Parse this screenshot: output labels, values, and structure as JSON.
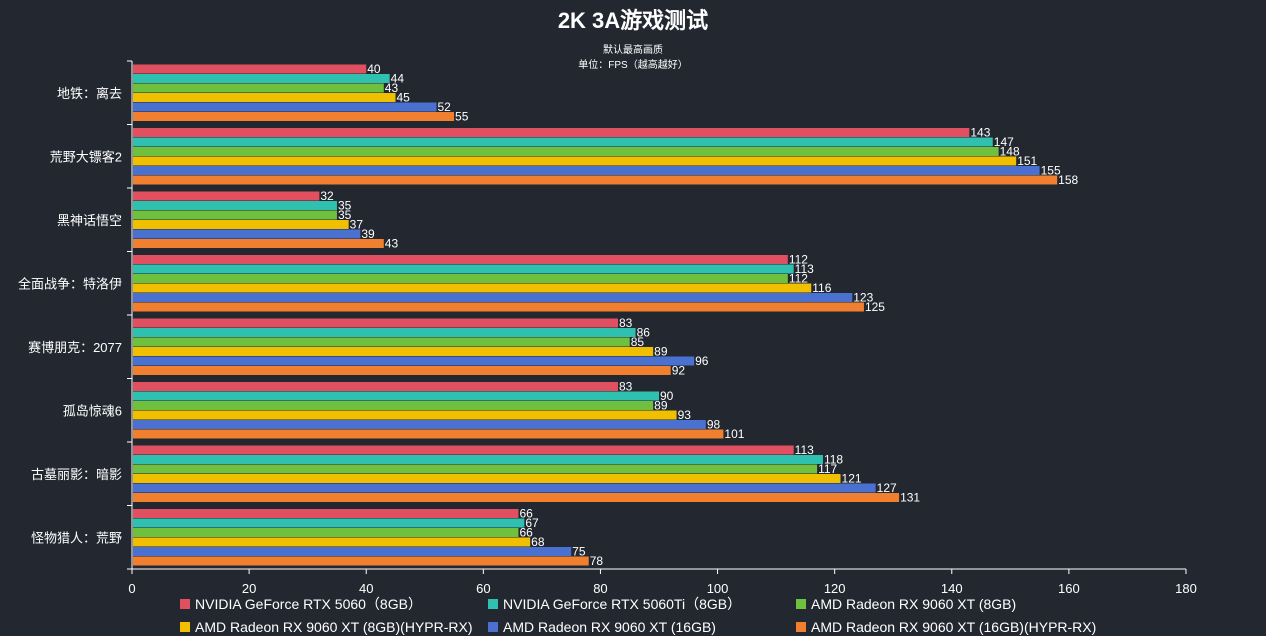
{
  "chart_data": {
    "type": "bar",
    "orientation": "horizontal",
    "title": "2K 3A游戏测试",
    "subtitle": "默认最高画质",
    "subtitle2": "单位：FPS（越高越好）",
    "categories": [
      "地铁：离去",
      "荒野大镖客2",
      "黑神话悟空",
      "全面战争：特洛伊",
      "赛博朋克：2077",
      "孤岛惊魂6",
      "古墓丽影：暗影",
      "怪物猎人：荒野"
    ],
    "series": [
      {
        "name": "NVIDIA GeForce RTX 5060（8GB）",
        "color": "#e05060",
        "values": [
          40,
          143,
          32,
          112,
          83,
          83,
          113,
          66
        ]
      },
      {
        "name": "NVIDIA GeForce RTX 5060Ti（8GB）",
        "color": "#30c0b0",
        "values": [
          44,
          147,
          35,
          113,
          86,
          90,
          118,
          67
        ]
      },
      {
        "name": "AMD Radeon RX 9060 XT (8GB)",
        "color": "#70c040",
        "values": [
          43,
          148,
          35,
          112,
          85,
          89,
          117,
          66
        ]
      },
      {
        "name": "AMD Radeon RX 9060 XT (8GB)(HYPR-RX)",
        "color": "#f0c000",
        "values": [
          45,
          151,
          37,
          116,
          89,
          93,
          121,
          68
        ]
      },
      {
        "name": "AMD Radeon RX 9060 XT (16GB)",
        "color": "#4a70d0",
        "values": [
          52,
          155,
          39,
          123,
          96,
          98,
          127,
          75
        ]
      },
      {
        "name": "AMD Radeon RX 9060 XT (16GB)(HYPR-RX)",
        "color": "#f08030",
        "values": [
          55,
          158,
          43,
          125,
          92,
          101,
          131,
          78
        ]
      }
    ],
    "xlim": [
      0,
      180
    ],
    "xticks": [
      0,
      20,
      40,
      60,
      80,
      100,
      120,
      140,
      160,
      180
    ],
    "grid": false,
    "legend_position": "bottom"
  }
}
